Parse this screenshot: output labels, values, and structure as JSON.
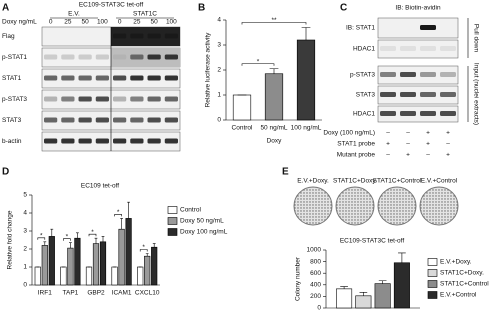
{
  "panels": [
    "A",
    "B",
    "C",
    "D",
    "E"
  ],
  "blot_a": {
    "title": "EC109-STAT3C tet-off",
    "groups": [
      "E.V.",
      "STAT1C"
    ],
    "dose_label": "Doxy ng/mL",
    "doses": [
      0,
      25,
      50,
      100,
      0,
      25,
      50,
      100
    ],
    "rows": [
      "Flag",
      "p-STAT1",
      "STAT1",
      "p-STAT3",
      "STAT3",
      "b-actin"
    ]
  },
  "blot_c": {
    "title": "IB: Biotin-avidin",
    "rows": [
      "IB: STAT1",
      "HDAC1",
      "p-STAT3",
      "STAT3",
      "HDAC1"
    ],
    "sections": [
      "Pull down",
      "Input (nuclei extracts)"
    ],
    "conditions": [
      {
        "label": "Doxy (100 ng/mL)",
        "signs": [
          "–",
          "–",
          "+",
          "+"
        ]
      },
      {
        "label": "STAT1 probe",
        "signs": [
          "+",
          "–",
          "+",
          "–"
        ]
      },
      {
        "label": "Mutant probe",
        "signs": [
          "–",
          "+",
          "–",
          "+"
        ]
      }
    ]
  },
  "chart_data": [
    {
      "type": "bar",
      "ylabel": "Relative luciferase activity",
      "xlabel": "Doxy",
      "categories": [
        "Control",
        "50 ng/mL",
        "100 ng/mL"
      ],
      "values": [
        1,
        1.85,
        3.2
      ],
      "errors": [
        0,
        0.2,
        0.5
      ],
      "colors": [
        "#ffffff",
        "#8c8c8c",
        "#3a3a3a"
      ],
      "ylim": [
        0,
        4
      ],
      "yticks": [
        0,
        1,
        2,
        3,
        4
      ],
      "annotations": [
        {
          "text": "*",
          "from": 0,
          "to": 1
        },
        {
          "text": "**",
          "from": 0,
          "to": 2
        }
      ]
    },
    {
      "type": "bar",
      "title": "EC109 tet-off",
      "ylabel": "Relative fold change",
      "categories": [
        "IRF1",
        "TAP1",
        "GBP2",
        "ICAM1",
        "CXCL10"
      ],
      "series": [
        {
          "name": "Control",
          "color": "#ffffff",
          "values": [
            1,
            1,
            1,
            1,
            1
          ],
          "errors": [
            0,
            0,
            0,
            0,
            0
          ]
        },
        {
          "name": "Doxy 50 ng/mL",
          "color": "#9a9a9a",
          "values": [
            2.2,
            2.05,
            2.3,
            3.1,
            1.6
          ],
          "errors": [
            0.2,
            0.3,
            0.3,
            0.6,
            0.15
          ]
        },
        {
          "name": "Doxy 100 ng/mL",
          "color": "#2b2b2b",
          "values": [
            2.7,
            2.6,
            2.4,
            3.7,
            2.1
          ],
          "errors": [
            0.4,
            0.3,
            0.3,
            0.9,
            0.2
          ]
        }
      ],
      "ylim": [
        0,
        5
      ],
      "yticks": [
        0,
        1,
        2,
        3,
        4,
        5
      ],
      "legend": "right",
      "annotations": [
        {
          "text": "*",
          "category": 0
        },
        {
          "text": "*",
          "category": 1
        },
        {
          "text": "*",
          "category": 2
        },
        {
          "text": "*",
          "category": 3
        },
        {
          "text": "*",
          "category": 4
        }
      ]
    },
    {
      "type": "bar",
      "title": "EC109-STAT3C tet-off",
      "ylabel": "Colony number",
      "series": [
        {
          "name": "E.V.+Doxy.",
          "color": "#ffffff",
          "values": [
            330
          ],
          "errors": [
            40
          ]
        },
        {
          "name": "STAT1C+Doxy.",
          "color": "#d9d9d9",
          "values": [
            210
          ],
          "errors": [
            60
          ]
        },
        {
          "name": "STAT1C+Control",
          "color": "#8c8c8c",
          "values": [
            420
          ],
          "errors": [
            50
          ]
        },
        {
          "name": "E.V.+Control",
          "color": "#2b2b2b",
          "values": [
            780
          ],
          "errors": [
            170
          ]
        }
      ],
      "ylim": [
        0,
        1000
      ],
      "yticks": [
        0,
        200,
        400,
        600,
        800,
        1000
      ],
      "legend": "right"
    }
  ]
}
